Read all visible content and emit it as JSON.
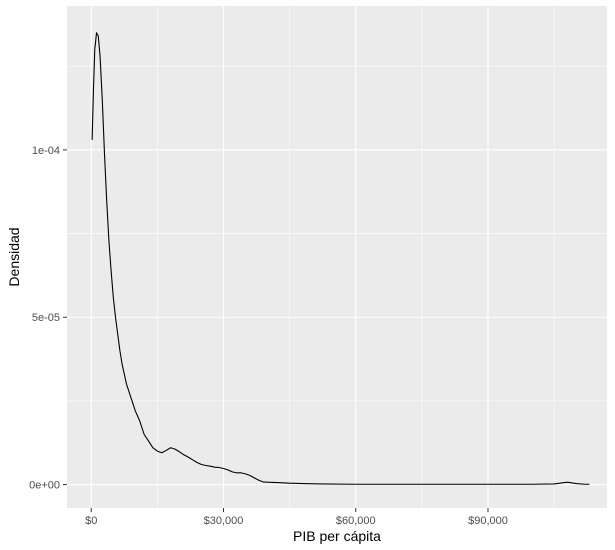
{
  "chart_data": {
    "type": "area",
    "title": "",
    "xlabel": "PIB per cápita",
    "ylabel": "Densidad",
    "xlim": [
      -5500,
      117000
    ],
    "ylim": [
      -7e-06,
      0.000143
    ],
    "x_ticks": [
      0,
      30000,
      60000,
      90000
    ],
    "x_tick_labels": [
      "$0",
      "$30,000",
      "$60,000",
      "$90,000"
    ],
    "y_ticks": [
      0,
      5e-05,
      0.0001
    ],
    "y_tick_labels": [
      "0e+00",
      "5e-05",
      "1e-04"
    ],
    "grid": true,
    "legend": "none",
    "colors": {
      "panel": "#ebebeb",
      "grid_major": "#ffffff",
      "line": "#000000"
    },
    "series": [
      {
        "x": [
          200,
          500,
          800,
          1200,
          1600,
          2000,
          2500,
          3000,
          3500,
          4000,
          4500,
          5000,
          5500,
          6000,
          6500,
          7000,
          8000,
          9000,
          10000,
          11000,
          12000,
          13000,
          14000,
          15000,
          16000,
          17000,
          18000,
          19000,
          20000,
          21000,
          22000,
          23000,
          24000,
          25000,
          26000,
          27000,
          28000,
          29000,
          30000,
          31000,
          32000,
          33000,
          34000,
          35000,
          36000,
          37000,
          38000,
          39000,
          40000,
          42000,
          45000,
          48000,
          52000,
          60000,
          70000,
          80000,
          90000,
          100000,
          105000,
          108000,
          110000,
          112000,
          113000
        ],
        "y": [
          0.000103,
          0.000118,
          0.00013,
          0.000135,
          0.000134,
          0.000128,
          0.000115,
          9.9e-05,
          8.5e-05,
          7.3e-05,
          6.4e-05,
          5.6e-05,
          5e-05,
          4.5e-05,
          4e-05,
          3.6e-05,
          3e-05,
          2.6e-05,
          2.2e-05,
          1.9e-05,
          1.5e-05,
          1.3e-05,
          1.1e-05,
          1e-05,
          9.5e-06,
          1.02e-05,
          1.1e-05,
          1.06e-05,
          9.8e-06,
          8.9e-06,
          8.2e-06,
          7.4e-06,
          6.6e-06,
          6e-06,
          5.7e-06,
          5.5e-06,
          5.2e-06,
          5.1e-06,
          4.8e-06,
          4.4e-06,
          3.8e-06,
          3.5e-06,
          3.5e-06,
          3.2e-06,
          2.7e-06,
          2e-06,
          1.3e-06,
          8e-07,
          7e-07,
          6e-07,
          4e-07,
          3e-07,
          2e-07,
          1e-07,
          1e-07,
          1e-07,
          1e-07,
          1e-07,
          2e-07,
          7e-07,
          3e-07,
          1e-07,
          1e-07
        ]
      }
    ]
  }
}
